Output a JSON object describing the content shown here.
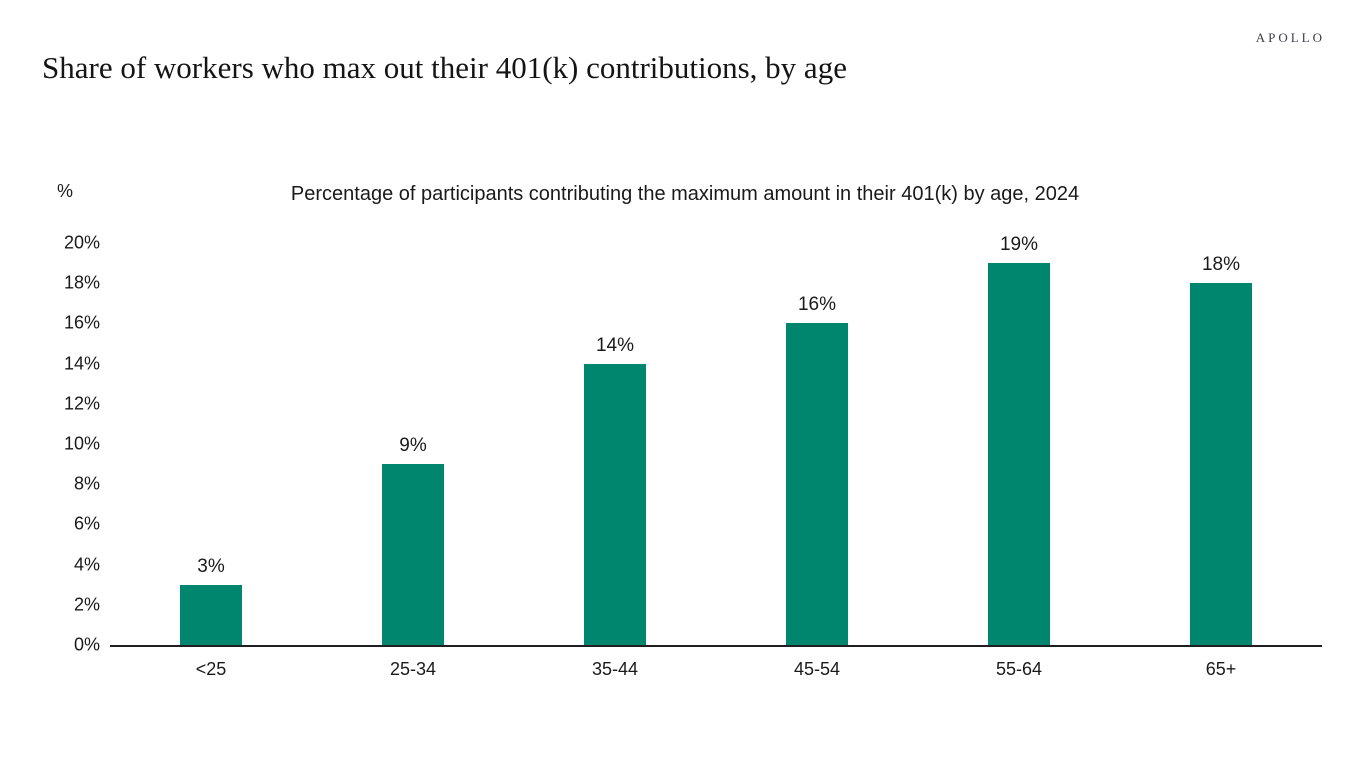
{
  "header": {
    "logo": "APOLLO",
    "title": "Share of workers who max out their 401(k) contributions, by age"
  },
  "chart_data": {
    "type": "bar",
    "title": "Percentage of participants contributing the maximum amount in their 401(k) by age, 2024",
    "unit_label": "%",
    "categories": [
      "<25",
      "25-34",
      "35-44",
      "45-54",
      "55-64",
      "65+"
    ],
    "values": [
      3,
      9,
      14,
      16,
      19,
      18
    ],
    "data_labels": [
      "3%",
      "9%",
      "14%",
      "16%",
      "19%",
      "18%"
    ],
    "y_ticks": [
      20,
      18,
      16,
      14,
      12,
      10,
      8,
      6,
      4,
      2,
      0
    ],
    "y_tick_suffix": "%",
    "ylim": [
      0,
      20
    ],
    "grid": false,
    "legend": "none",
    "bar_color": "#00866F",
    "axis_color": "#1f1f1f",
    "text_color": "#1a1a1a",
    "logo_color": "#3b3b45"
  }
}
